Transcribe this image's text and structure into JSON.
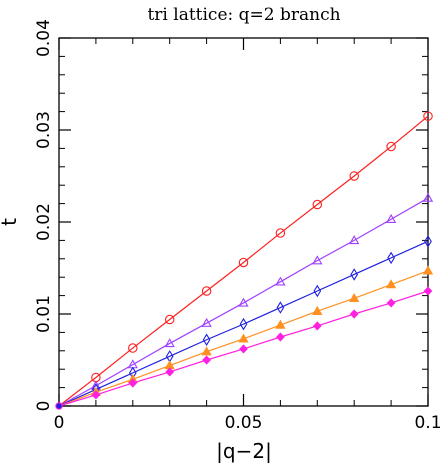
{
  "chart_data": {
    "type": "line",
    "title": "tri lattice: q=2 branch",
    "xlabel": "|q−2|",
    "ylabel": "t",
    "xlim": [
      0,
      0.1
    ],
    "ylim": [
      0,
      0.04
    ],
    "xticks": [
      {
        "value": 0,
        "label": "0"
      },
      {
        "value": 0.05,
        "label": "0.05"
      },
      {
        "value": 0.1,
        "label": "0.1"
      }
    ],
    "yticks": [
      {
        "value": 0,
        "label": "0"
      },
      {
        "value": 0.01,
        "label": "0.01"
      },
      {
        "value": 0.02,
        "label": "0.02"
      },
      {
        "value": 0.03,
        "label": "0.03"
      },
      {
        "value": 0.04,
        "label": "0.04"
      }
    ],
    "grid": false,
    "x": [
      0,
      0.01,
      0.02,
      0.03,
      0.04,
      0.05,
      0.06,
      0.07,
      0.08,
      0.09,
      0.1
    ],
    "series": [
      {
        "color": "#ff2020",
        "marker": "circle-open",
        "values": [
          0,
          0.0031,
          0.0063,
          0.0094,
          0.0125,
          0.0156,
          0.0188,
          0.0219,
          0.025,
          0.0282,
          0.0315
        ]
      },
      {
        "color": "#a040ff",
        "marker": "triangle-open",
        "values": [
          0,
          0.0022,
          0.0045,
          0.0068,
          0.009,
          0.0112,
          0.0135,
          0.0158,
          0.018,
          0.0203,
          0.0226
        ]
      },
      {
        "color": "#2020e0",
        "marker": "diamond-open",
        "values": [
          0,
          0.0018,
          0.0036,
          0.0054,
          0.0072,
          0.0089,
          0.0107,
          0.0125,
          0.0143,
          0.0161,
          0.0179
        ]
      },
      {
        "color": "#ff9020",
        "marker": "triangle-filled",
        "values": [
          0,
          0.0015,
          0.0029,
          0.0044,
          0.0059,
          0.0073,
          0.0088,
          0.0103,
          0.0117,
          0.0132,
          0.0147
        ]
      },
      {
        "color": "#ff20e0",
        "marker": "diamond-filled",
        "values": [
          0,
          0.0012,
          0.0025,
          0.0037,
          0.005,
          0.0062,
          0.0075,
          0.0087,
          0.01,
          0.0112,
          0.0125
        ]
      }
    ]
  }
}
